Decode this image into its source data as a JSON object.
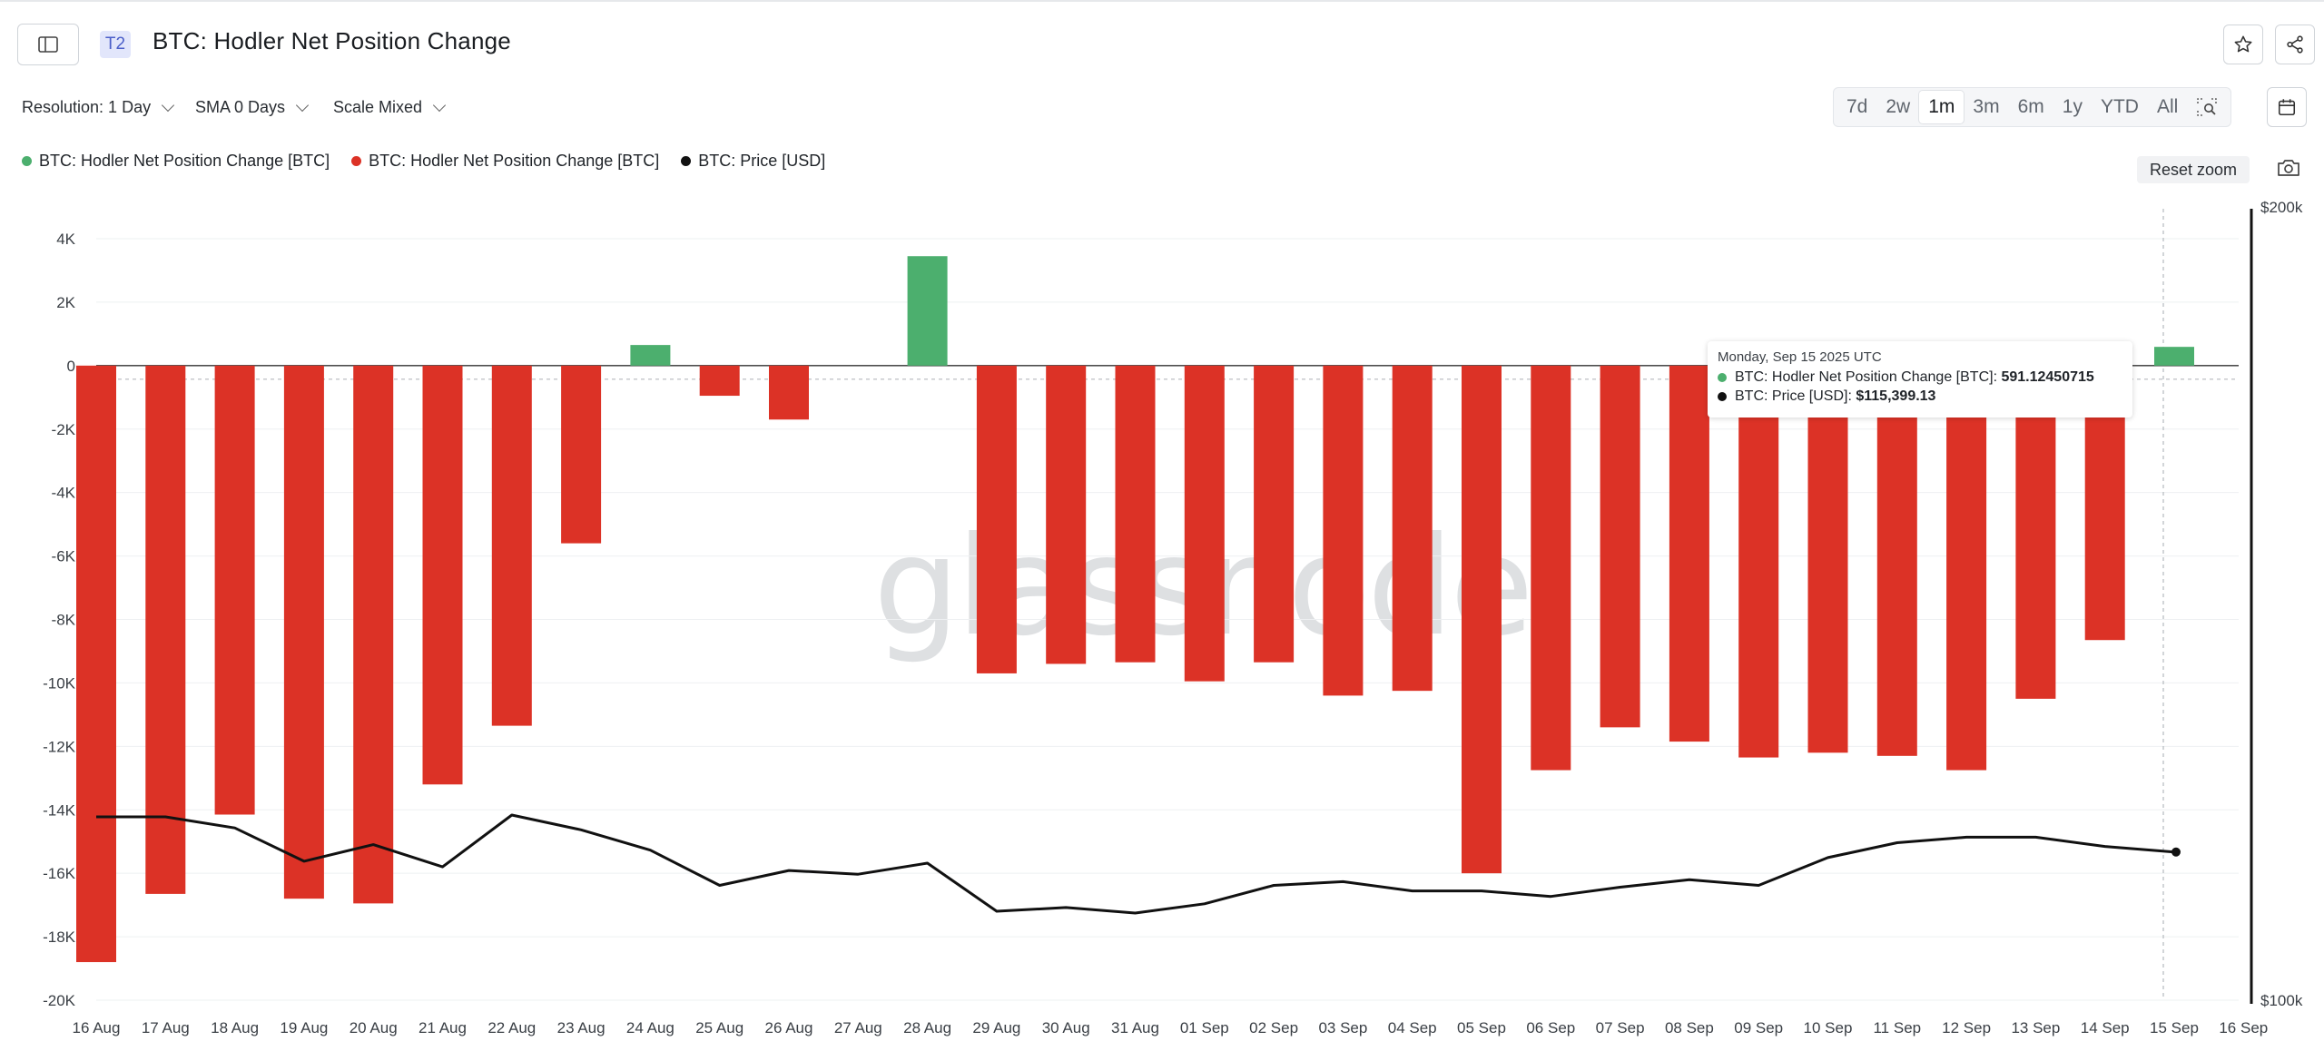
{
  "header": {
    "tier_badge": "T2",
    "title": "BTC: Hodler Net Position Change"
  },
  "toolbar": {
    "resolution": "Resolution: 1 Day",
    "sma": "SMA 0 Days",
    "scale": "Scale Mixed",
    "ranges": [
      "7d",
      "2w",
      "1m",
      "3m",
      "6m",
      "1y",
      "YTD",
      "All"
    ],
    "active_range": "1m",
    "reset_zoom": "Reset zoom"
  },
  "legend": [
    {
      "label": "BTC: Hodler Net Position Change [BTC]",
      "color": "#4caf6e"
    },
    {
      "label": "BTC: Hodler Net Position Change [BTC]",
      "color": "#dc3226"
    },
    {
      "label": "BTC: Price [USD]",
      "color": "#111111"
    }
  ],
  "tooltip": {
    "date": "Monday, Sep 15 2025 UTC",
    "row1_label": "BTC: Hodler Net Position Change [BTC]: ",
    "row1_value": "591.12450715",
    "row2_label": "BTC: Price [USD]: ",
    "row2_value": "$115,399.13"
  },
  "watermark": "glassnode",
  "chart_data": {
    "type": "bar",
    "categories": [
      "16 Aug",
      "17 Aug",
      "18 Aug",
      "19 Aug",
      "20 Aug",
      "21 Aug",
      "22 Aug",
      "23 Aug",
      "24 Aug",
      "25 Aug",
      "26 Aug",
      "27 Aug",
      "28 Aug",
      "29 Aug",
      "30 Aug",
      "31 Aug",
      "01 Sep",
      "02 Sep",
      "03 Sep",
      "04 Sep",
      "05 Sep",
      "06 Sep",
      "07 Sep",
      "08 Sep",
      "09 Sep",
      "10 Sep",
      "11 Sep",
      "12 Sep",
      "13 Sep",
      "14 Sep",
      "15 Sep",
      "16 Sep"
    ],
    "series": [
      {
        "name": "BTC: Hodler Net Position Change [BTC]",
        "axis": "left",
        "values": [
          -18800,
          -16650,
          -14150,
          -16800,
          -16950,
          -13200,
          -11350,
          -5600,
          650,
          -950,
          -1700,
          0,
          3450,
          -9700,
          -9400,
          -9350,
          -9950,
          -9350,
          -10400,
          -10250,
          -16000,
          -12750,
          -11400,
          -11850,
          -12350,
          -12200,
          -12300,
          -12750,
          -10500,
          -8650,
          591.12,
          null
        ]
      },
      {
        "name": "BTC: Price [USD]",
        "axis": "right",
        "values": [
          117300,
          117300,
          116700,
          114900,
          115800,
          114600,
          117400,
          116600,
          115500,
          113600,
          114400,
          114200,
          114800,
          112200,
          112400,
          112100,
          112600,
          113600,
          113800,
          113300,
          113300,
          113000,
          113500,
          113900,
          113600,
          115100,
          115900,
          116200,
          116200,
          115700,
          115400,
          null
        ]
      }
    ],
    "positive_color": "#4caf6e",
    "negative_color": "#dc3226",
    "price_color": "#111111",
    "y_left_ticks": [
      "4K",
      "2K",
      "0",
      "-2K",
      "-4K",
      "-6K",
      "-8K",
      "-10K",
      "-12K",
      "-14K",
      "-16K",
      "-18K",
      "-20K"
    ],
    "y_left_range": [
      -20000,
      4000
    ],
    "y_right_labels": [
      "$200k",
      "$100k"
    ],
    "y_right_range": [
      100000,
      200000
    ],
    "y_right_scale": "log"
  }
}
